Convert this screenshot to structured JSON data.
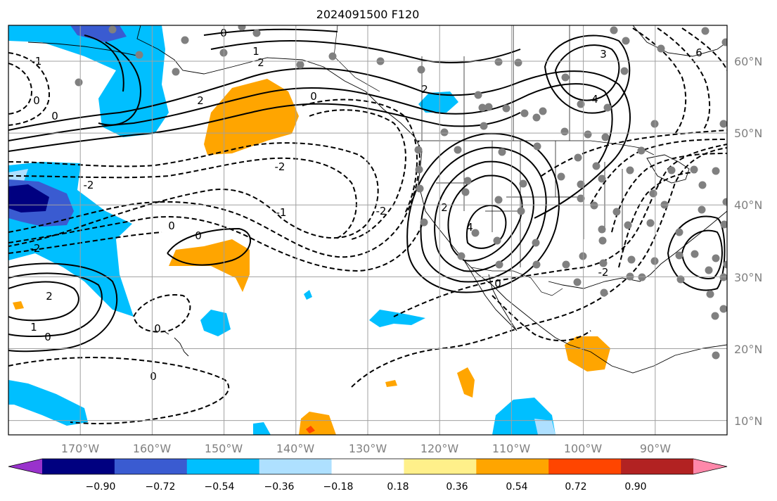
{
  "title": "2024091500 F120",
  "map": {
    "x_range_deg": [
      -180,
      -80
    ],
    "y_range_deg": [
      8,
      65
    ],
    "lon_ticks": [
      {
        "lon": -170,
        "label": "170°W"
      },
      {
        "lon": -160,
        "label": "160°W"
      },
      {
        "lon": -150,
        "label": "150°W"
      },
      {
        "lon": -140,
        "label": "140°W"
      },
      {
        "lon": -130,
        "label": "130°W"
      },
      {
        "lon": -120,
        "label": "120°W"
      },
      {
        "lon": -110,
        "label": "110°W"
      },
      {
        "lon": -100,
        "label": "100°W"
      },
      {
        "lon": -90,
        "label": "90°W"
      }
    ],
    "lat_ticks": [
      {
        "lat": 60,
        "label": "60°N"
      },
      {
        "lat": 50,
        "label": "50°N"
      },
      {
        "lat": 40,
        "label": "40°N"
      },
      {
        "lat": 30,
        "label": "30°N"
      },
      {
        "lat": 20,
        "label": "20°N"
      },
      {
        "lat": 10,
        "label": "10°N"
      }
    ],
    "contour_labels": [
      "0",
      "1",
      "2",
      "3",
      "4",
      "6",
      "-1",
      "-2"
    ]
  },
  "colorbar": {
    "colors": [
      "#9932cc",
      "#000080",
      "#3a5bd1",
      "#00bfff",
      "#aee0ff",
      "#ffffff",
      "#fff08a",
      "#ffa500",
      "#ff4500",
      "#b22222",
      "#ff88aa"
    ],
    "tick_labels": [
      "−0.90",
      "−0.72",
      "−0.54",
      "−0.36",
      "−0.18",
      "0.18",
      "0.36",
      "0.54",
      "0.72",
      "0.90"
    ]
  }
}
